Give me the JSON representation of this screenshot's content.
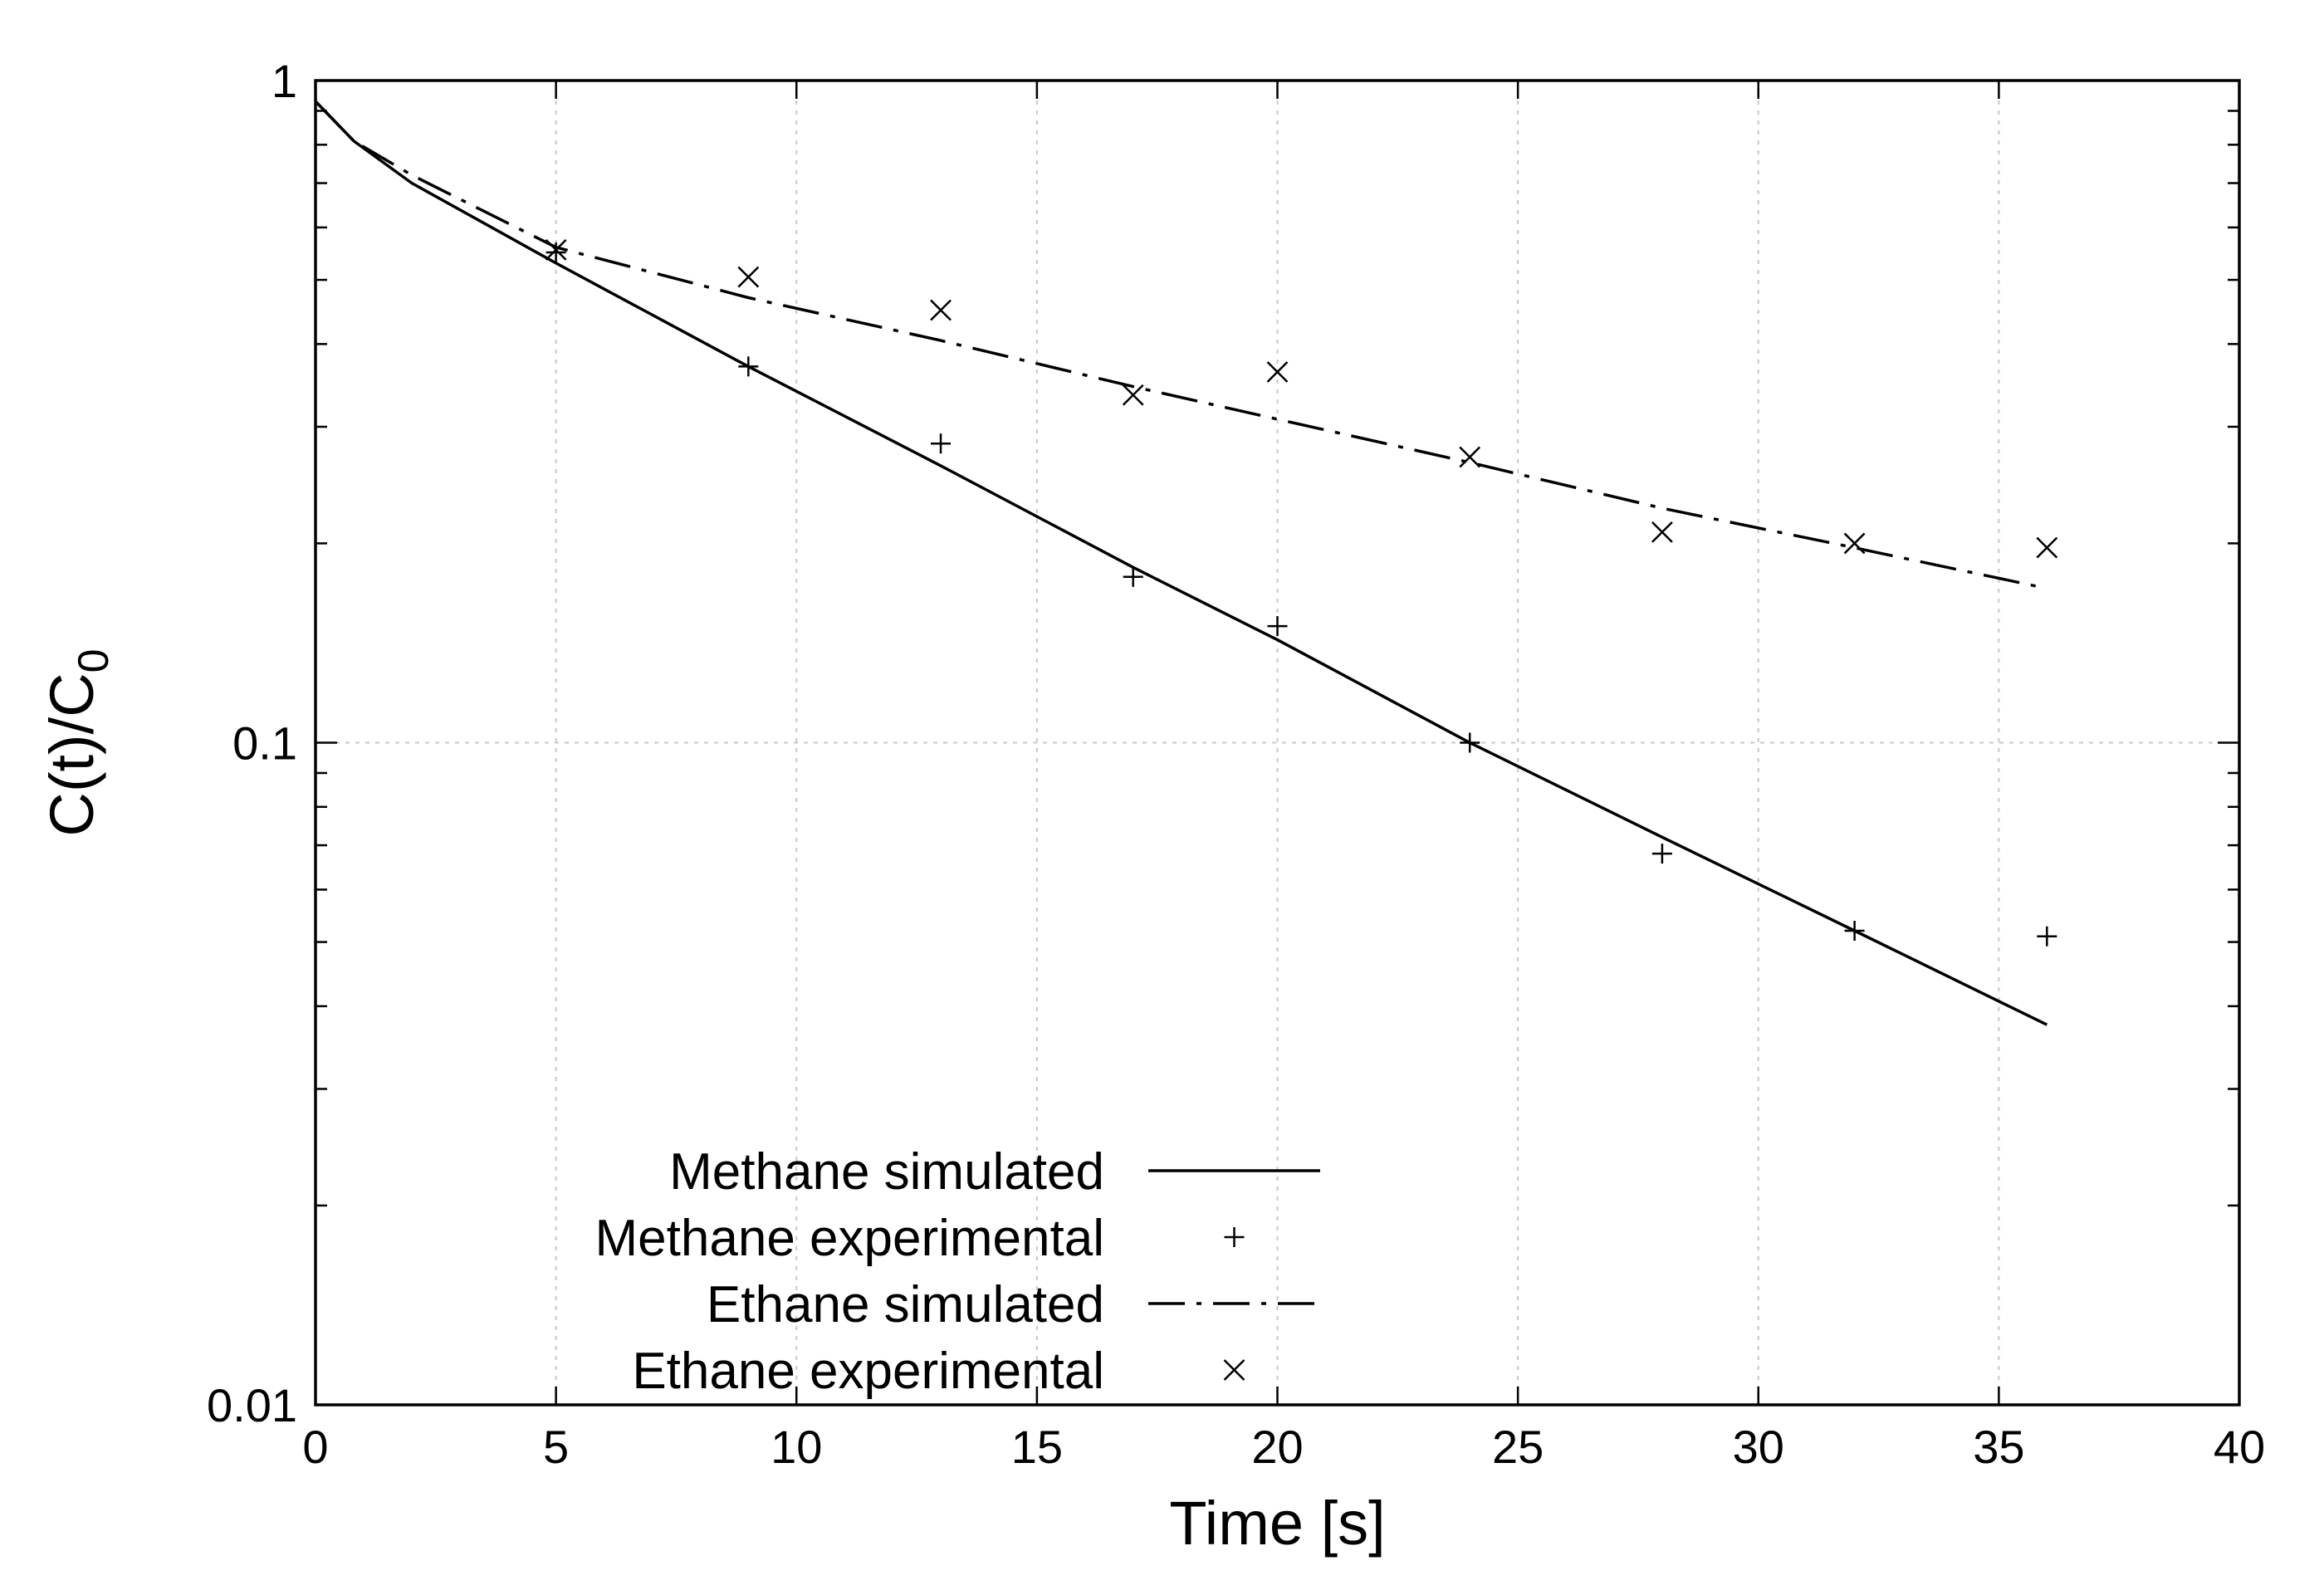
{
  "chart_data": {
    "type": "line",
    "title": "",
    "xlabel": "Time [s]",
    "ylabel": "C(t)/C",
    "ylabel_subscript": "0",
    "xlim": [
      0,
      40
    ],
    "ylim": [
      0.01,
      1
    ],
    "yscale": "log",
    "grid": true,
    "legend_position": "bottom-left",
    "x_ticks": [
      0,
      5,
      10,
      15,
      20,
      25,
      30,
      35,
      40
    ],
    "x_tick_labels": [
      "0",
      "5",
      "10",
      "15",
      "20",
      "25",
      "30",
      "35",
      "40"
    ],
    "y_ticks": [
      0.01,
      0.1,
      1
    ],
    "y_tick_labels": [
      "0.01",
      "0.1",
      "1"
    ],
    "series": [
      {
        "name": "Methane simulated",
        "kind": "line",
        "style": "solid",
        "x": [
          0,
          0.8,
          2,
          5,
          9,
          13,
          17,
          20,
          24,
          28,
          32,
          36
        ],
        "y": [
          0.93,
          0.81,
          0.7,
          0.53,
          0.37,
          0.262,
          0.184,
          0.143,
          0.1,
          0.072,
          0.052,
          0.0375
        ]
      },
      {
        "name": "Methane experimental",
        "kind": "scatter",
        "marker": "plus",
        "x": [
          5,
          9,
          13,
          17,
          20,
          24,
          28,
          32,
          36
        ],
        "y": [
          0.55,
          0.37,
          0.283,
          0.178,
          0.15,
          0.1,
          0.068,
          0.052,
          0.051
        ]
      },
      {
        "name": "Ethane simulated",
        "kind": "line",
        "style": "dash-dot",
        "x": [
          0,
          0.8,
          2,
          5,
          9,
          13,
          17,
          20,
          24,
          28,
          32,
          36
        ],
        "y": [
          0.93,
          0.81,
          0.72,
          0.56,
          0.47,
          0.405,
          0.345,
          0.308,
          0.265,
          0.226,
          0.197,
          0.171
        ]
      },
      {
        "name": "Ethane experimental",
        "kind": "scatter",
        "marker": "cross",
        "x": [
          5,
          9,
          13,
          17,
          20,
          24,
          28,
          32,
          36
        ],
        "y": [
          0.555,
          0.505,
          0.45,
          0.335,
          0.363,
          0.27,
          0.208,
          0.2,
          0.197
        ]
      }
    ]
  }
}
